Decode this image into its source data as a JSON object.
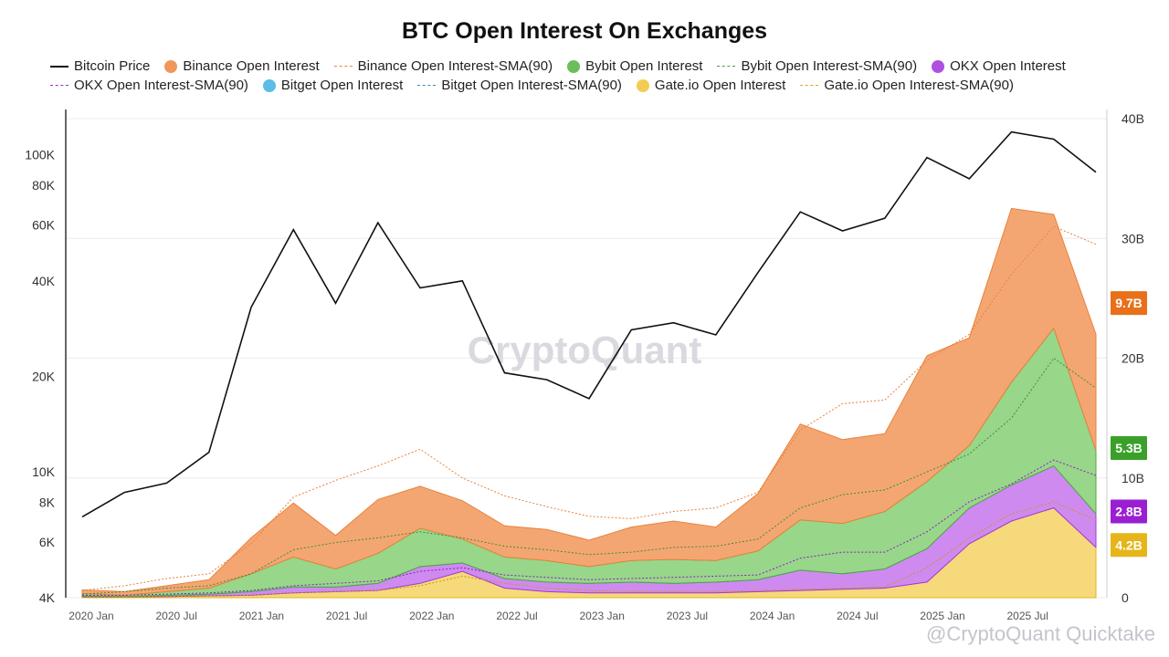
{
  "chart_data": {
    "type": "area",
    "title": "BTC Open Interest On Exchanges",
    "x_tick_labels": [
      "2020 Jan",
      "2020 Jul",
      "2021 Jan",
      "2021 Jul",
      "2022 Jan",
      "2022 Jul",
      "2023 Jan",
      "2023 Jul",
      "2024 Jan",
      "2024 Jul",
      "2025 Jan",
      "2025 Jul"
    ],
    "left_axis": {
      "scale": "log",
      "ticks": [
        "100K",
        "80K",
        "60K",
        "40K",
        "20K",
        "10K",
        "8K",
        "6K",
        "4K"
      ],
      "tick_values": [
        100000,
        80000,
        60000,
        40000,
        20000,
        10000,
        8000,
        6000,
        4000
      ],
      "range": [
        4000,
        130000
      ]
    },
    "right_axis": {
      "scale": "linear",
      "ticks": [
        "40B",
        "30B",
        "20B",
        "10B",
        "0"
      ],
      "tick_values": [
        40,
        30,
        20,
        10,
        0
      ],
      "range": [
        0,
        40
      ]
    },
    "grid": "horizontal",
    "legend_placement": "top",
    "legend": [
      {
        "label": "Bitcoin Price",
        "kind": "line",
        "color": "#111111"
      },
      {
        "label": "Binance Open Interest",
        "kind": "area",
        "color": "#f0965a"
      },
      {
        "label": "Binance Open Interest-SMA(90)",
        "kind": "dash",
        "color": "#e8823c"
      },
      {
        "label": "Bybit Open Interest",
        "kind": "area",
        "color": "#6abf5a"
      },
      {
        "label": "Bybit Open Interest-SMA(90)",
        "kind": "dash",
        "color": "#4e9e3e"
      },
      {
        "label": "OKX Open Interest",
        "kind": "area",
        "color": "#b04fe0"
      },
      {
        "label": "OKX Open Interest-SMA(90)",
        "kind": "dash",
        "color": "#9a2fd0"
      },
      {
        "label": "Bitget Open Interest",
        "kind": "area",
        "color": "#5bbde8"
      },
      {
        "label": "Bitget Open Interest-SMA(90)",
        "kind": "dash",
        "color": "#2f8fbf"
      },
      {
        "label": "Gate.io Open Interest",
        "kind": "area",
        "color": "#f2cc55"
      },
      {
        "label": "Gate.io Open Interest-SMA(90)",
        "kind": "dash",
        "color": "#d9a820"
      }
    ],
    "badges": [
      {
        "label": "9.7B",
        "value": 24.6,
        "color": "#e8701a"
      },
      {
        "label": "5.3B",
        "value": 12.5,
        "color": "#3aa02a"
      },
      {
        "label": "2.8B",
        "value": 7.2,
        "color": "#9a1fd0"
      },
      {
        "label": "4.2B",
        "value": 4.4,
        "color": "#e6b51a"
      }
    ],
    "dates": [
      "2020-01",
      "2020-04",
      "2020-07",
      "2020-10",
      "2021-01",
      "2021-04",
      "2021-07",
      "2021-10",
      "2022-01",
      "2022-04",
      "2022-07",
      "2022-10",
      "2023-01",
      "2023-04",
      "2023-07",
      "2023-10",
      "2024-01",
      "2024-04",
      "2024-07",
      "2024-10",
      "2025-01",
      "2025-04",
      "2025-07",
      "2025-10",
      "2025-11"
    ],
    "series": [
      {
        "name": "Bitcoin Price",
        "axis": "left",
        "values": [
          7200,
          8600,
          9200,
          11500,
          33000,
          58000,
          34000,
          61000,
          38000,
          40000,
          20500,
          19500,
          17000,
          28000,
          29500,
          27000,
          42500,
          66000,
          57500,
          63000,
          98000,
          84000,
          118000,
          112000,
          88000
        ]
      },
      {
        "name": "Gate.io Open Interest",
        "axis": "right",
        "values": [
          0.05,
          0.05,
          0.1,
          0.15,
          0.2,
          0.4,
          0.5,
          0.6,
          1.2,
          2.2,
          0.8,
          0.5,
          0.4,
          0.4,
          0.4,
          0.4,
          0.5,
          0.6,
          0.7,
          0.8,
          1.3,
          4.5,
          6.4,
          7.5,
          4.2
        ]
      },
      {
        "name": "OKX Open Interest",
        "axis": "right",
        "values": [
          0.1,
          0.05,
          0.1,
          0.15,
          0.3,
          0.5,
          0.4,
          0.6,
          1.4,
          0.7,
          0.8,
          0.8,
          0.8,
          0.9,
          0.8,
          0.9,
          1.0,
          1.7,
          1.3,
          1.6,
          2.8,
          3.0,
          3.0,
          3.5,
          2.8
        ]
      },
      {
        "name": "Bitget Open Interest",
        "axis": "right",
        "values": [
          0.0,
          0.0,
          0.0,
          0.0,
          0.0,
          0.0,
          0.0,
          0.0,
          0.0,
          0.0,
          0.0,
          0.0,
          0.0,
          0.0,
          0.0,
          0.0,
          0.0,
          0.0,
          0.0,
          0.0,
          0.0,
          0.0,
          0.0,
          0.0,
          0.0
        ]
      },
      {
        "name": "Bybit Open Interest",
        "axis": "right",
        "values": [
          0.2,
          0.1,
          0.3,
          0.5,
          1.5,
          2.5,
          1.5,
          2.5,
          3.2,
          2.0,
          1.8,
          1.8,
          1.4,
          1.8,
          2.0,
          1.8,
          2.4,
          4.2,
          4.2,
          4.8,
          5.6,
          5.2,
          8.6,
          11.5,
          5.3
        ]
      },
      {
        "name": "Binance Open Interest",
        "axis": "right",
        "values": [
          0.3,
          0.3,
          0.5,
          0.7,
          3.0,
          4.5,
          2.8,
          4.5,
          3.5,
          3.2,
          2.6,
          2.6,
          2.2,
          2.8,
          3.2,
          2.8,
          4.8,
          8.0,
          7.0,
          6.5,
          10.5,
          9.0,
          14.5,
          9.5,
          9.7
        ]
      }
    ],
    "sma_series": [
      {
        "name": "Binance Open Interest-SMA(90)",
        "values": [
          0.6,
          1.0,
          1.6,
          2.0,
          4.5,
          8.4,
          9.8,
          11.0,
          12.4,
          10.0,
          8.5,
          7.6,
          6.8,
          6.6,
          7.2,
          7.5,
          8.8,
          14.0,
          16.2,
          16.5,
          19.8,
          22.0,
          27.0,
          31.0,
          29.5
        ]
      },
      {
        "name": "Bybit Open Interest-SMA(90)",
        "values": [
          0.3,
          0.5,
          0.8,
          1.0,
          2.0,
          4.0,
          4.6,
          5.0,
          5.5,
          5.0,
          4.3,
          4.0,
          3.6,
          3.8,
          4.2,
          4.3,
          4.9,
          7.5,
          8.6,
          9.0,
          10.5,
          12.0,
          15.0,
          20.0,
          17.5
        ]
      },
      {
        "name": "OKX Open Interest-SMA(90)",
        "values": [
          0.2,
          0.2,
          0.3,
          0.4,
          0.6,
          1.0,
          1.2,
          1.4,
          2.2,
          2.5,
          1.9,
          1.7,
          1.5,
          1.6,
          1.7,
          1.8,
          1.9,
          3.3,
          3.8,
          3.8,
          5.5,
          8.0,
          9.5,
          11.5,
          10.2
        ]
      },
      {
        "name": "Gate.io Open Interest-SMA(90)",
        "values": [
          0.05,
          0.05,
          0.1,
          0.15,
          0.2,
          0.4,
          0.5,
          0.6,
          1.0,
          1.8,
          1.2,
          0.8,
          0.6,
          0.5,
          0.5,
          0.5,
          0.6,
          0.7,
          0.8,
          0.9,
          2.5,
          5.0,
          7.0,
          8.0,
          6.5
        ]
      }
    ]
  },
  "watermark": {
    "center": "CryptoQuant",
    "corner": "@CryptoQuant Quicktake"
  }
}
